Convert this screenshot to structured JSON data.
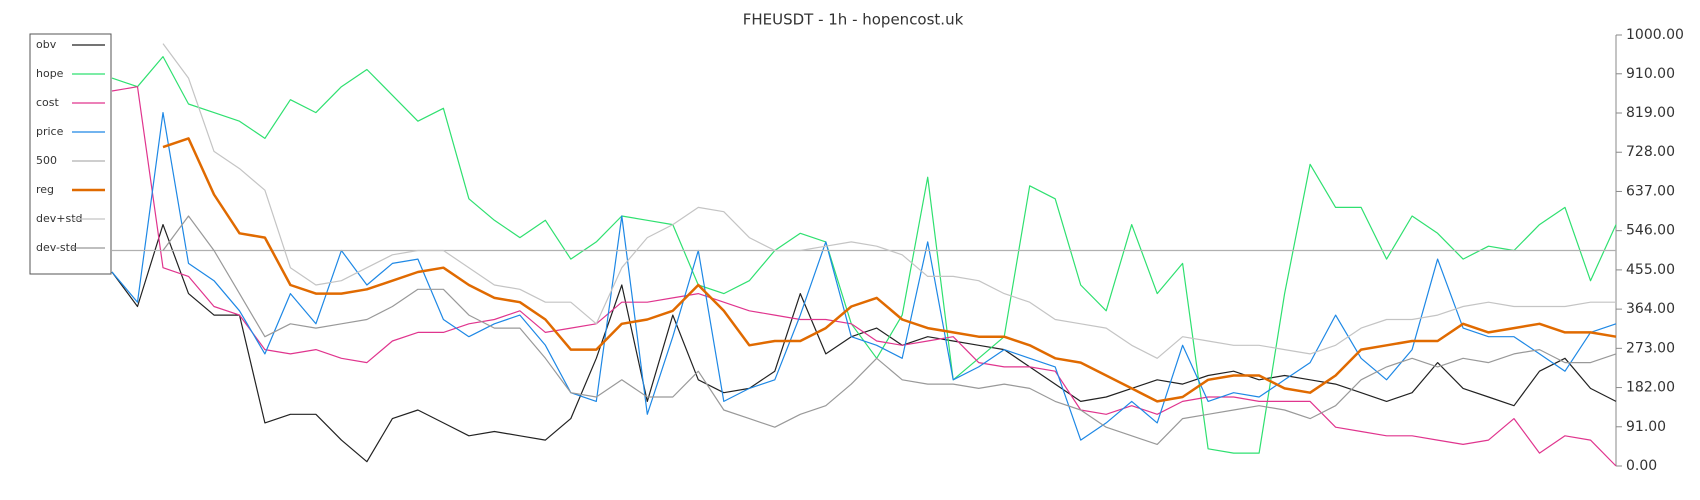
{
  "chart_data": {
    "type": "line",
    "title": "FHEUSDT - 1h - hopencost.uk",
    "ylim": [
      0,
      1000
    ],
    "yticks": [
      {
        "value": 0,
        "label": "0.00"
      },
      {
        "value": 91,
        "label": "91.00"
      },
      {
        "value": 182,
        "label": "182.00"
      },
      {
        "value": 273,
        "label": "273.00"
      },
      {
        "value": 364,
        "label": "364.00"
      },
      {
        "value": 455,
        "label": "455.00"
      },
      {
        "value": 546,
        "label": "546.00"
      },
      {
        "value": 637,
        "label": "637.00"
      },
      {
        "value": 728,
        "label": "728.00"
      },
      {
        "value": 819,
        "label": "819.00"
      },
      {
        "value": 910,
        "label": "910.00"
      },
      {
        "value": 1000,
        "label": "1000.00"
      }
    ],
    "legend": "upper left",
    "series": [
      {
        "name": "obv",
        "color": "#222222",
        "width": 1.2,
        "values": [
          450,
          370,
          560,
          400,
          350,
          350,
          100,
          120,
          120,
          60,
          10,
          110,
          130,
          100,
          70,
          80,
          70,
          60,
          110,
          250,
          420,
          150,
          350,
          200,
          170,
          180,
          220,
          400,
          260,
          300,
          320,
          280,
          300,
          290,
          280,
          270,
          230,
          190,
          150,
          160,
          180,
          200,
          190,
          210,
          220,
          200,
          210,
          200,
          190,
          170,
          150,
          170,
          240,
          180,
          160,
          140,
          220,
          250,
          180,
          150
        ]
      },
      {
        "name": "hope",
        "color": "#2fe070",
        "width": 1.2,
        "values": [
          900,
          880,
          950,
          840,
          820,
          800,
          760,
          850,
          820,
          880,
          920,
          860,
          800,
          830,
          620,
          570,
          530,
          570,
          480,
          520,
          580,
          570,
          560,
          420,
          400,
          430,
          500,
          540,
          520,
          330,
          250,
          350,
          670,
          200,
          250,
          300,
          650,
          620,
          420,
          360,
          560,
          400,
          470,
          40,
          30,
          30,
          400,
          700,
          600,
          600,
          480,
          580,
          540,
          480,
          510,
          500,
          560,
          600,
          430,
          560
        ]
      },
      {
        "name": "cost",
        "color": "#e0358e",
        "width": 1.2,
        "values": [
          870,
          880,
          460,
          440,
          370,
          350,
          270,
          260,
          270,
          250,
          240,
          290,
          310,
          310,
          330,
          340,
          360,
          310,
          320,
          330,
          380,
          380,
          390,
          400,
          380,
          360,
          350,
          340,
          340,
          330,
          290,
          280,
          290,
          300,
          240,
          230,
          230,
          220,
          130,
          120,
          140,
          120,
          150,
          160,
          160,
          150,
          150,
          150,
          90,
          80,
          70,
          70,
          60,
          50,
          60,
          110,
          30,
          70,
          60,
          0
        ]
      },
      {
        "name": "price",
        "color": "#1e88e5",
        "width": 1.2,
        "values": [
          450,
          380,
          820,
          470,
          430,
          360,
          260,
          400,
          330,
          500,
          420,
          470,
          480,
          340,
          300,
          330,
          350,
          280,
          170,
          150,
          580,
          120,
          300,
          500,
          150,
          180,
          200,
          350,
          520,
          300,
          280,
          250,
          520,
          200,
          230,
          270,
          250,
          230,
          60,
          100,
          150,
          100,
          280,
          150,
          170,
          160,
          200,
          240,
          350,
          250,
          200,
          270,
          480,
          320,
          300,
          300,
          260,
          220,
          310,
          330
        ]
      },
      {
        "name": "500",
        "color": "#b0b0b0",
        "width": 1.2,
        "values": [
          500,
          500,
          500,
          500,
          500,
          500,
          500,
          500,
          500,
          500,
          500,
          500,
          500,
          500,
          500,
          500,
          500,
          500,
          500,
          500,
          500,
          500,
          500,
          500,
          500,
          500,
          500,
          500,
          500,
          500,
          500,
          500,
          500,
          500,
          500,
          500,
          500,
          500,
          500,
          500,
          500,
          500,
          500,
          500,
          500,
          500,
          500,
          500,
          500,
          500,
          500,
          500,
          500,
          500,
          500,
          500,
          500,
          500,
          500,
          500
        ]
      },
      {
        "name": "reg",
        "color": "#e06a00",
        "width": 2.5,
        "values": [
          null,
          null,
          740,
          760,
          630,
          540,
          530,
          420,
          400,
          400,
          410,
          430,
          450,
          460,
          420,
          390,
          380,
          340,
          270,
          270,
          330,
          340,
          360,
          420,
          360,
          280,
          290,
          290,
          320,
          370,
          390,
          340,
          320,
          310,
          300,
          300,
          280,
          250,
          240,
          210,
          180,
          150,
          160,
          200,
          210,
          210,
          180,
          170,
          210,
          270,
          280,
          290,
          290,
          330,
          310,
          320,
          330,
          310,
          310,
          300
        ]
      },
      {
        "name": "dev+std",
        "color": "#c4c4c4",
        "width": 1.2,
        "values": [
          null,
          null,
          980,
          900,
          730,
          690,
          640,
          460,
          420,
          430,
          460,
          490,
          500,
          500,
          460,
          420,
          410,
          380,
          380,
          330,
          460,
          530,
          560,
          600,
          590,
          530,
          500,
          500,
          510,
          520,
          510,
          490,
          440,
          440,
          430,
          400,
          380,
          340,
          330,
          320,
          280,
          250,
          300,
          290,
          280,
          280,
          270,
          260,
          280,
          320,
          340,
          340,
          350,
          370,
          380,
          370,
          370,
          370,
          380,
          380
        ]
      },
      {
        "name": "dev-std",
        "color": "#999999",
        "width": 1.2,
        "values": [
          null,
          null,
          500,
          580,
          500,
          400,
          300,
          330,
          320,
          330,
          340,
          370,
          410,
          410,
          350,
          320,
          320,
          250,
          170,
          160,
          200,
          160,
          160,
          220,
          130,
          110,
          90,
          120,
          140,
          190,
          250,
          200,
          190,
          190,
          180,
          190,
          180,
          150,
          130,
          90,
          70,
          50,
          110,
          120,
          130,
          140,
          130,
          110,
          140,
          200,
          230,
          250,
          230,
          250,
          240,
          260,
          270,
          240,
          240,
          260
        ]
      }
    ]
  }
}
